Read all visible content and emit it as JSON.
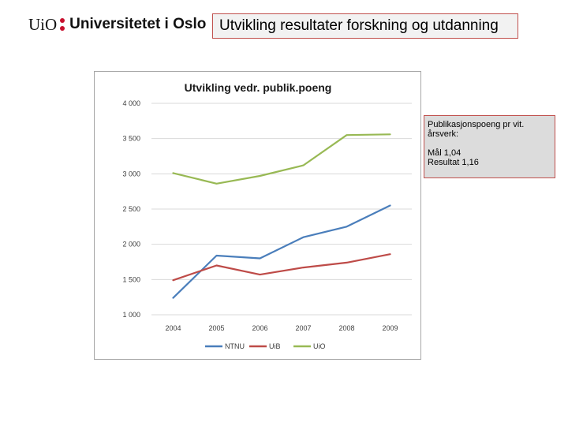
{
  "logo": {
    "uio_text": "UiO",
    "university_name": "Universitetet i Oslo",
    "dot_color": "#c8102e"
  },
  "slide": {
    "title": "Utvikling resultater forskning og utdanning"
  },
  "note": {
    "line1": "Publikasjonspoeng pr vit. årsverk:",
    "line2": "Mål 1,04",
    "line3": "Resultat 1,16"
  },
  "chart_data": {
    "type": "line",
    "title": "Utvikling vedr. publik.poeng",
    "xlabel": "",
    "ylabel": "",
    "x": [
      "2004",
      "2005",
      "2006",
      "2007",
      "2008",
      "2009"
    ],
    "ylim": [
      1000,
      4000
    ],
    "yticks": [
      1000,
      1500,
      2000,
      2500,
      3000,
      3500,
      4000
    ],
    "ytick_labels": [
      "1 000",
      "1 500",
      "2 000",
      "2 500",
      "3 000",
      "3 500",
      "4 000"
    ],
    "grid": true,
    "legend_position": "bottom",
    "series": [
      {
        "name": "NTNU",
        "color": "#4a7ebb",
        "values": [
          1240,
          1840,
          1800,
          2100,
          2250,
          2550
        ]
      },
      {
        "name": "UiB",
        "color": "#be4b48",
        "values": [
          1490,
          1700,
          1570,
          1670,
          1740,
          1860
        ]
      },
      {
        "name": "UiO",
        "color": "#98b954",
        "values": [
          3010,
          2860,
          2970,
          3120,
          3550,
          3560
        ]
      }
    ]
  }
}
